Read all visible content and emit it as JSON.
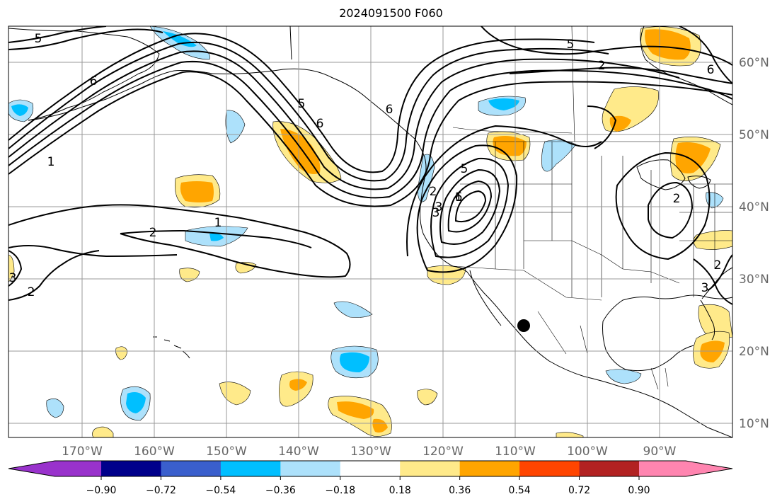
{
  "title": "2024091500 F060",
  "map": {
    "lon_labels": [
      "170°W",
      "160°W",
      "150°W",
      "140°W",
      "130°W",
      "120°W",
      "110°W",
      "100°W",
      "90°W"
    ],
    "lat_labels": [
      "60°N",
      "50°N",
      "40°N",
      "30°N",
      "20°N",
      "10°N"
    ],
    "colors": {
      "land_outline": "#000000",
      "grid": "#999999",
      "contour": "#000000",
      "pos_low": "#ffea8a",
      "pos_mid": "#ffa500",
      "neg_low": "#ade1fb",
      "neg_mid": "#00bfff"
    },
    "contour_labels": [
      {
        "text": "5"
      },
      {
        "text": "6"
      },
      {
        "text": "1"
      },
      {
        "text": "2"
      },
      {
        "text": "1"
      },
      {
        "text": "2"
      },
      {
        "text": "3"
      },
      {
        "text": "6"
      },
      {
        "text": "6"
      },
      {
        "text": "5"
      },
      {
        "text": "5"
      },
      {
        "text": "2"
      },
      {
        "text": "6"
      },
      {
        "text": "1"
      },
      {
        "text": "3"
      },
      {
        "text": "2"
      },
      {
        "text": "3"
      },
      {
        "text": "5"
      },
      {
        "text": "6"
      },
      {
        "text": "2"
      },
      {
        "text": "3"
      },
      {
        "text": "2"
      }
    ],
    "marker": "filled-circle"
  },
  "colorbar": {
    "colors": [
      "#9932cc",
      "#00008b",
      "#3a5fcd",
      "#00bfff",
      "#ade1fb",
      "#ffffff",
      "#ffea8a",
      "#ffa500",
      "#ff4500",
      "#b22222",
      "#ff85b0"
    ],
    "tick_labels": [
      "−0.90",
      "−0.72",
      "−0.54",
      "−0.36",
      "−0.18",
      "0.18",
      "0.36",
      "0.54",
      "0.72",
      "0.90"
    ]
  }
}
